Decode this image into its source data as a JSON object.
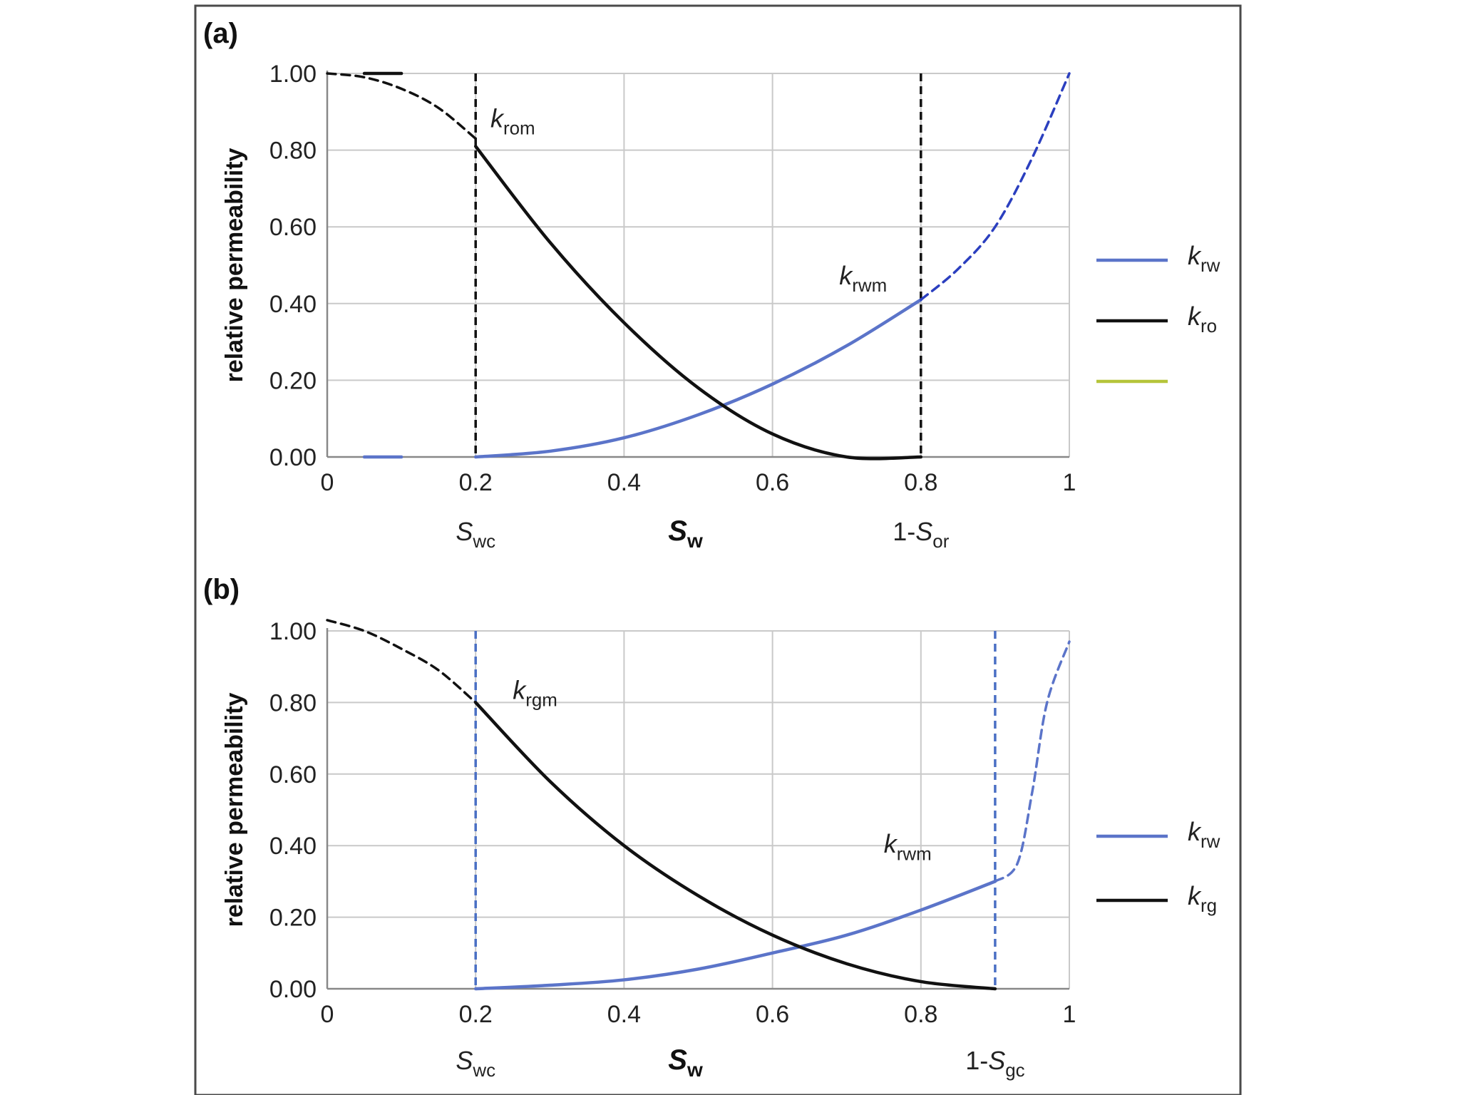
{
  "chart_data": [
    {
      "panel_label": "(a)",
      "type": "line",
      "ylabel": "relative permeability",
      "xlabel": "S",
      "xlabel_sub": "w",
      "xlim": [
        0,
        1
      ],
      "ylim": [
        0,
        1
      ],
      "grid": true,
      "x_ticks": [
        "0",
        "0.2",
        "0.4",
        "0.6",
        "0.8",
        "1"
      ],
      "x_tick_values": [
        0,
        0.2,
        0.4,
        0.6,
        0.8,
        1
      ],
      "y_ticks": [
        "0.00",
        "0.20",
        "0.40",
        "0.60",
        "0.80",
        "1.00"
      ],
      "y_tick_values": [
        0,
        0.2,
        0.4,
        0.6,
        0.8,
        1.0
      ],
      "vlines": [
        {
          "x": 0.2,
          "color": "#111111",
          "label_main": "S",
          "label_prefix": "",
          "label_sub": "wc"
        },
        {
          "x": 0.8,
          "color": "#111111",
          "label_main": "S",
          "label_prefix": "1-",
          "label_sub": "or"
        }
      ],
      "annotations": [
        {
          "main": "k",
          "sub": "rom",
          "x": 0.22,
          "y": 0.86
        },
        {
          "main": "k",
          "sub": "rwm",
          "x": 0.69,
          "y": 0.45
        }
      ],
      "series": [
        {
          "name": "krw",
          "color": "#5b74c9",
          "x": [
            0.2,
            0.3,
            0.4,
            0.5,
            0.6,
            0.7,
            0.8
          ],
          "y": [
            0.0,
            0.015,
            0.05,
            0.11,
            0.19,
            0.29,
            0.41
          ]
        },
        {
          "name": "krw-dashed",
          "color": "#2b3fbf",
          "dashed": true,
          "x": [
            0.8,
            0.85,
            0.9,
            0.95,
            1.0
          ],
          "y": [
            0.41,
            0.49,
            0.6,
            0.78,
            1.0
          ]
        },
        {
          "name": "kro",
          "color": "#111111",
          "x": [
            0.2,
            0.3,
            0.4,
            0.5,
            0.6,
            0.7,
            0.8
          ],
          "y": [
            0.81,
            0.56,
            0.35,
            0.18,
            0.06,
            0.0,
            0.0
          ]
        },
        {
          "name": "kro-dashed",
          "color": "#111111",
          "dashed": true,
          "x": [
            0.0,
            0.05,
            0.1,
            0.15,
            0.2
          ],
          "y": [
            1.0,
            0.99,
            0.96,
            0.91,
            0.83
          ]
        },
        {
          "name": "stub-top",
          "color": "#111111",
          "x": [
            0.05,
            0.1
          ],
          "y": [
            1.0,
            1.0
          ]
        },
        {
          "name": "stub-bottom",
          "color": "#5b74c9",
          "x": [
            0.05,
            0.1
          ],
          "y": [
            0.0,
            0.0
          ]
        }
      ],
      "legend": [
        {
          "main": "k",
          "sub": "rw",
          "color": "#5b74c9"
        },
        {
          "main": "k",
          "sub": "ro",
          "color": "#111111"
        },
        {
          "main": "",
          "sub": "",
          "color": "#b5c43a"
        }
      ]
    },
    {
      "panel_label": "(b)",
      "type": "line",
      "ylabel": "relative permeability",
      "xlabel": "S",
      "xlabel_sub": "w",
      "xlim": [
        0,
        1
      ],
      "ylim": [
        0,
        1
      ],
      "grid": true,
      "x_ticks": [
        "0",
        "0.2",
        "0.4",
        "0.6",
        "0.8",
        "1"
      ],
      "x_tick_values": [
        0,
        0.2,
        0.4,
        0.6,
        0.8,
        1
      ],
      "y_ticks": [
        "0.00",
        "0.20",
        "0.40",
        "0.60",
        "0.80",
        "1.00"
      ],
      "y_tick_values": [
        0,
        0.2,
        0.4,
        0.6,
        0.8,
        1.0
      ],
      "vlines": [
        {
          "x": 0.2,
          "color": "#4a6fc4",
          "label_main": "S",
          "label_prefix": "",
          "label_sub": "wc"
        },
        {
          "x": 0.9,
          "color": "#4a6fc4",
          "label_main": "S",
          "label_prefix": "1-",
          "label_sub": "gc"
        }
      ],
      "annotations": [
        {
          "main": "k",
          "sub": "rgm",
          "x": 0.25,
          "y": 0.81
        },
        {
          "main": "k",
          "sub": "rwm",
          "x": 0.75,
          "y": 0.38
        }
      ],
      "series": [
        {
          "name": "krw",
          "color": "#5b74c9",
          "x": [
            0.2,
            0.3,
            0.4,
            0.5,
            0.6,
            0.7,
            0.8,
            0.9
          ],
          "y": [
            0.0,
            0.01,
            0.025,
            0.055,
            0.1,
            0.15,
            0.22,
            0.3
          ]
        },
        {
          "name": "krw-dashed",
          "color": "#5b74c9",
          "dashed": true,
          "x": [
            0.9,
            0.93,
            0.95,
            0.97,
            1.0
          ],
          "y": [
            0.3,
            0.35,
            0.55,
            0.8,
            0.97
          ]
        },
        {
          "name": "krg",
          "color": "#111111",
          "x": [
            0.2,
            0.3,
            0.4,
            0.5,
            0.6,
            0.7,
            0.8,
            0.9
          ],
          "y": [
            0.8,
            0.58,
            0.4,
            0.26,
            0.15,
            0.07,
            0.02,
            0.0
          ]
        },
        {
          "name": "krg-dashed",
          "color": "#111111",
          "dashed": true,
          "x": [
            0.0,
            0.05,
            0.1,
            0.15,
            0.2
          ],
          "y": [
            1.03,
            1.0,
            0.95,
            0.89,
            0.8
          ]
        }
      ],
      "legend": [
        {
          "main": "k",
          "sub": "rw",
          "color": "#5b74c9"
        },
        {
          "main": "k",
          "sub": "rg",
          "color": "#111111"
        }
      ]
    }
  ]
}
